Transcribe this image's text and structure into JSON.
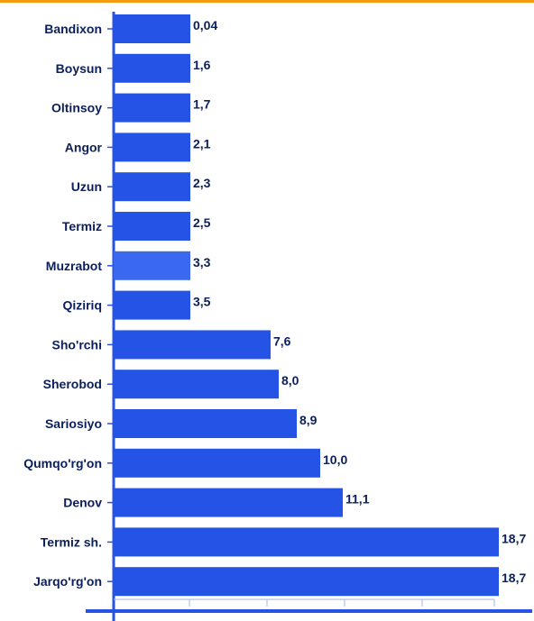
{
  "colors": {
    "bar": "#2453e6",
    "bar_highlight": "#3b68f0",
    "axis": "#2453e6",
    "text": "#0b1f5c",
    "top_border": "#f39c12"
  },
  "chart_data": {
    "type": "bar",
    "orientation": "horizontal",
    "categories": [
      "Bandixon",
      "Boysun",
      "Oltinsoy",
      "Angor",
      "Uzun",
      "Termiz",
      "Muzrabot",
      "Qiziriq",
      "Sho'rchi",
      "Sherobod",
      "Sariosiyo",
      "Qumqo'rg'on",
      "Denov",
      "Termiz sh.",
      "Jarqo'rg'on"
    ],
    "values": [
      0.04,
      1.6,
      1.7,
      2.1,
      2.3,
      2.5,
      3.3,
      3.5,
      7.6,
      8.0,
      8.9,
      10.0,
      11.1,
      18.7,
      18.7
    ],
    "value_labels": [
      "0,04",
      "1,6",
      "1,7",
      "2,1",
      "2,3",
      "2,5",
      "3,3",
      "3,5",
      "7,6",
      "8,0",
      "8,9",
      "10,0",
      "11,1",
      "18,7",
      "18,7"
    ],
    "highlight_index": 6,
    "title": "",
    "xlabel": "",
    "ylabel": "",
    "grid": false,
    "legend": "none"
  }
}
